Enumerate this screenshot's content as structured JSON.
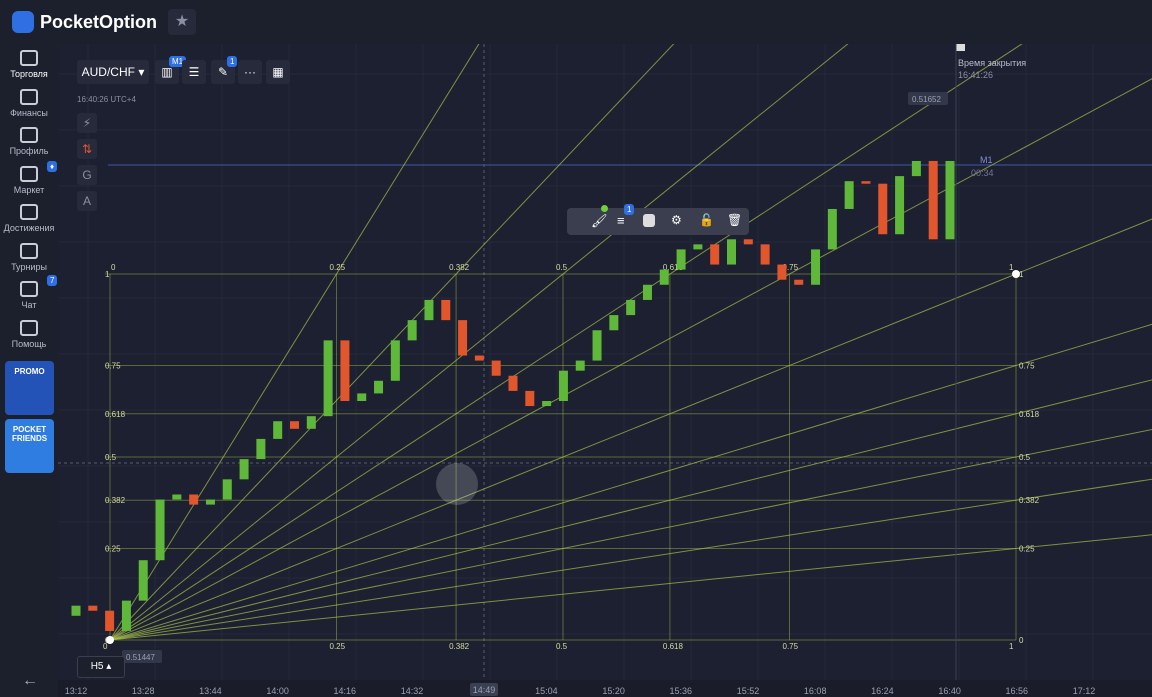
{
  "header": {
    "logo": "PocketOption"
  },
  "sidebar": {
    "items": [
      "Торговля",
      "Финансы",
      "Профиль",
      "Маркет",
      "Достижения",
      "Турниры",
      "Чат",
      "Помощь"
    ],
    "chat_badge": "7",
    "promo": "PROMO",
    "friends": "POCKET FRIENDS"
  },
  "toolbar": {
    "pair": "AUD/CHF",
    "timeframe": "M1",
    "drawings_badge": "1",
    "server_time": "16:40:26 UTC+4",
    "side_tools": [
      "G",
      "A"
    ]
  },
  "floating_toolbar_badge": "1",
  "expiry": {
    "label": "Время закрытия",
    "time": "16:41:26"
  },
  "timer": {
    "remaining": "00:34"
  },
  "bottom_timeframe": "H5",
  "chart": {
    "type": "candlestick",
    "open": [
      0.51455,
      0.51459,
      0.51457,
      0.51449,
      0.51461,
      0.51477,
      0.51501,
      0.51503,
      0.51499,
      0.51501,
      0.51509,
      0.51517,
      0.51525,
      0.51532,
      0.51529,
      0.51534,
      0.51564,
      0.5154,
      0.51543,
      0.51548,
      0.51564,
      0.51572,
      0.5158,
      0.51572,
      0.51558,
      0.51556,
      0.5155,
      0.51544,
      0.51538,
      0.5154,
      0.51552,
      0.51556,
      0.51568,
      0.51574,
      0.5158,
      0.51586,
      0.51592,
      0.516,
      0.51602,
      0.51594,
      0.51604,
      0.51602,
      0.51594,
      0.51588,
      0.51586,
      0.516,
      0.51616,
      0.51627,
      0.51626,
      0.51606,
      0.51629,
      0.51635,
      0.51604
    ],
    "close": [
      0.51459,
      0.51457,
      0.51449,
      0.51461,
      0.51477,
      0.51501,
      0.51503,
      0.51499,
      0.51501,
      0.51509,
      0.51517,
      0.51525,
      0.51532,
      0.51529,
      0.51534,
      0.51564,
      0.5154,
      0.51543,
      0.51548,
      0.51564,
      0.51572,
      0.5158,
      0.51572,
      0.51558,
      0.51556,
      0.5155,
      0.51544,
      0.51538,
      0.5154,
      0.51552,
      0.51556,
      0.51568,
      0.51574,
      0.5158,
      0.51586,
      0.51592,
      0.516,
      0.51602,
      0.51594,
      0.51604,
      0.51602,
      0.51594,
      0.51588,
      0.51586,
      0.516,
      0.51616,
      0.51627,
      0.51626,
      0.51606,
      0.51629,
      0.51635,
      0.51604,
      0.51635
    ],
    "up_color": "#5fb83a",
    "down_color": "#e2562e",
    "price_high_label": 0.51652,
    "price_low_label": 0.51447,
    "fib_levels": [
      0,
      0.25,
      0.382,
      0.5,
      0.618,
      0.75,
      1
    ],
    "fib_color": "#a9c24a",
    "x_labels": [
      "13:12",
      "13:28",
      "13:44",
      "14:00",
      "14:16",
      "14:32",
      null,
      "15:04",
      "15:20",
      "15:36",
      "15:52",
      "16:08",
      "16:24",
      "16:40",
      "16:56",
      "17:12"
    ],
    "cursor_time": "14:49"
  }
}
